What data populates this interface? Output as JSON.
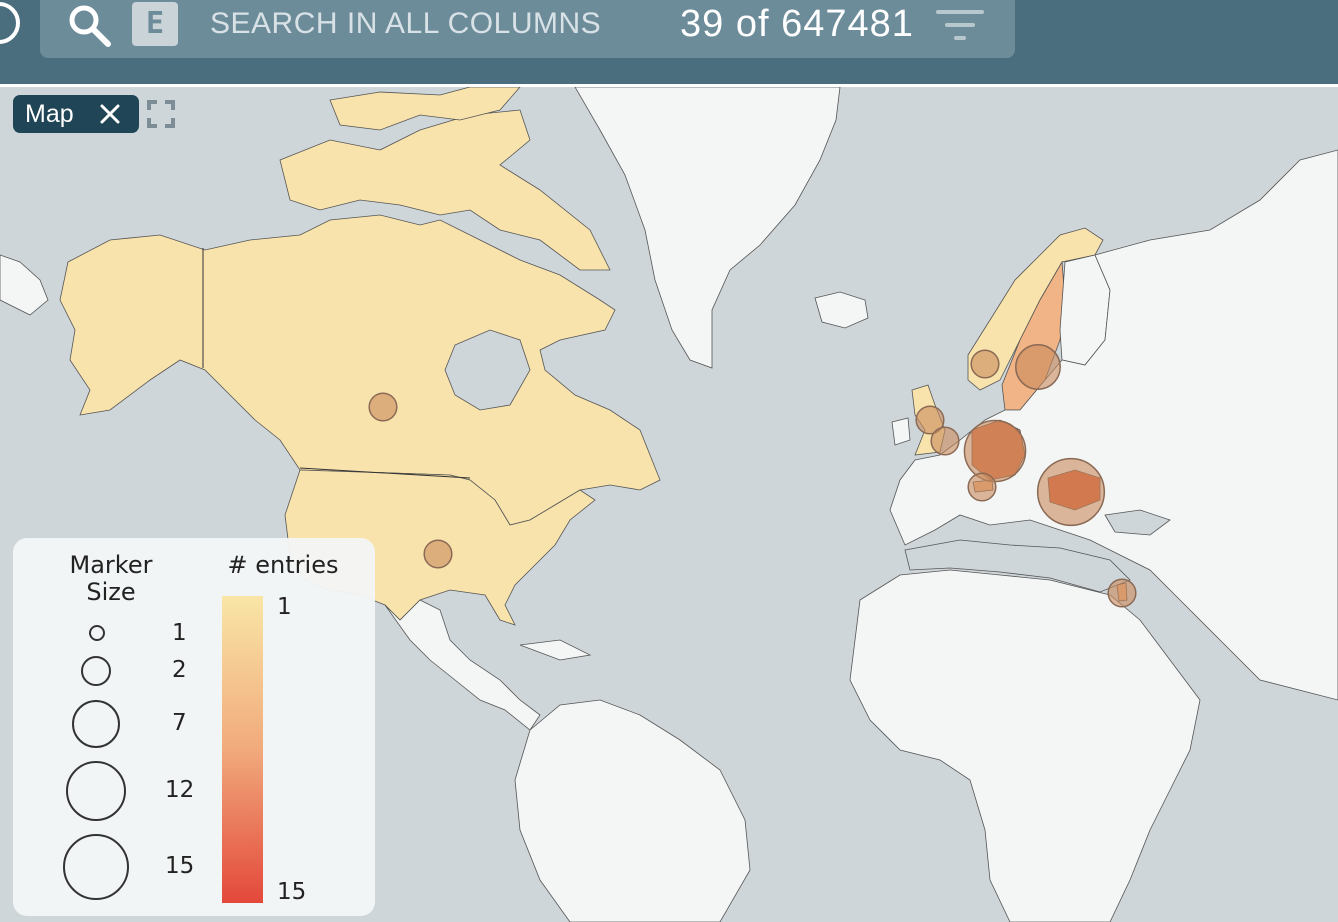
{
  "search": {
    "placeholder": "SEARCH IN ALL COLUMNS",
    "mode_badge": "E",
    "result_count": "39 of 647481"
  },
  "map_tab": {
    "label": "Map"
  },
  "legend": {
    "size_title_line1": "Marker",
    "size_title_line2": "Size",
    "color_title": "# entries",
    "size_steps": [
      "1",
      "2",
      "7",
      "12",
      "15"
    ],
    "color_min": "1",
    "color_max": "15",
    "color_scale": [
      "#f9e6a6",
      "#f1aa7c",
      "#e3483a"
    ]
  },
  "colors": {
    "topbar": "#4a6e7e",
    "ocean": "#cfd6d9",
    "land": "#f4f5f5",
    "choropleth_low": "#f8e3ac",
    "marker": "#c98a5c"
  },
  "markers": [
    {
      "region": "Canada",
      "value": 1
    },
    {
      "region": "United States",
      "value": 1
    },
    {
      "region": "Norway",
      "value": 1
    },
    {
      "region": "Sweden",
      "value": 5
    },
    {
      "region": "United Kingdom",
      "value": 1
    },
    {
      "region": "United Kingdom",
      "value": 1
    },
    {
      "region": "Germany",
      "value": 12
    },
    {
      "region": "Switzerland",
      "value": 1
    },
    {
      "region": "Romania",
      "value": 15
    },
    {
      "region": "Israel",
      "value": 1
    }
  ]
}
